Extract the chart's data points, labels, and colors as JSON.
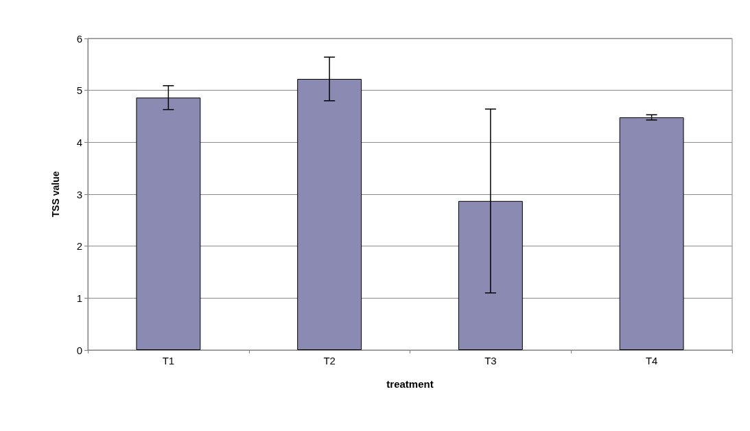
{
  "chart_data": {
    "type": "bar",
    "xlabel": "treatment",
    "ylabel": "TSS value",
    "categories": [
      "T1",
      "T2",
      "T3",
      "T4"
    ],
    "values": [
      4.86,
      5.22,
      2.87,
      4.48
    ],
    "errors": [
      0.23,
      0.42,
      1.77,
      0.05
    ],
    "color": "#8a8ab2",
    "ylim": [
      0,
      6
    ],
    "yticks": [
      0,
      1,
      2,
      3,
      4,
      5,
      6
    ],
    "grid": "y"
  }
}
